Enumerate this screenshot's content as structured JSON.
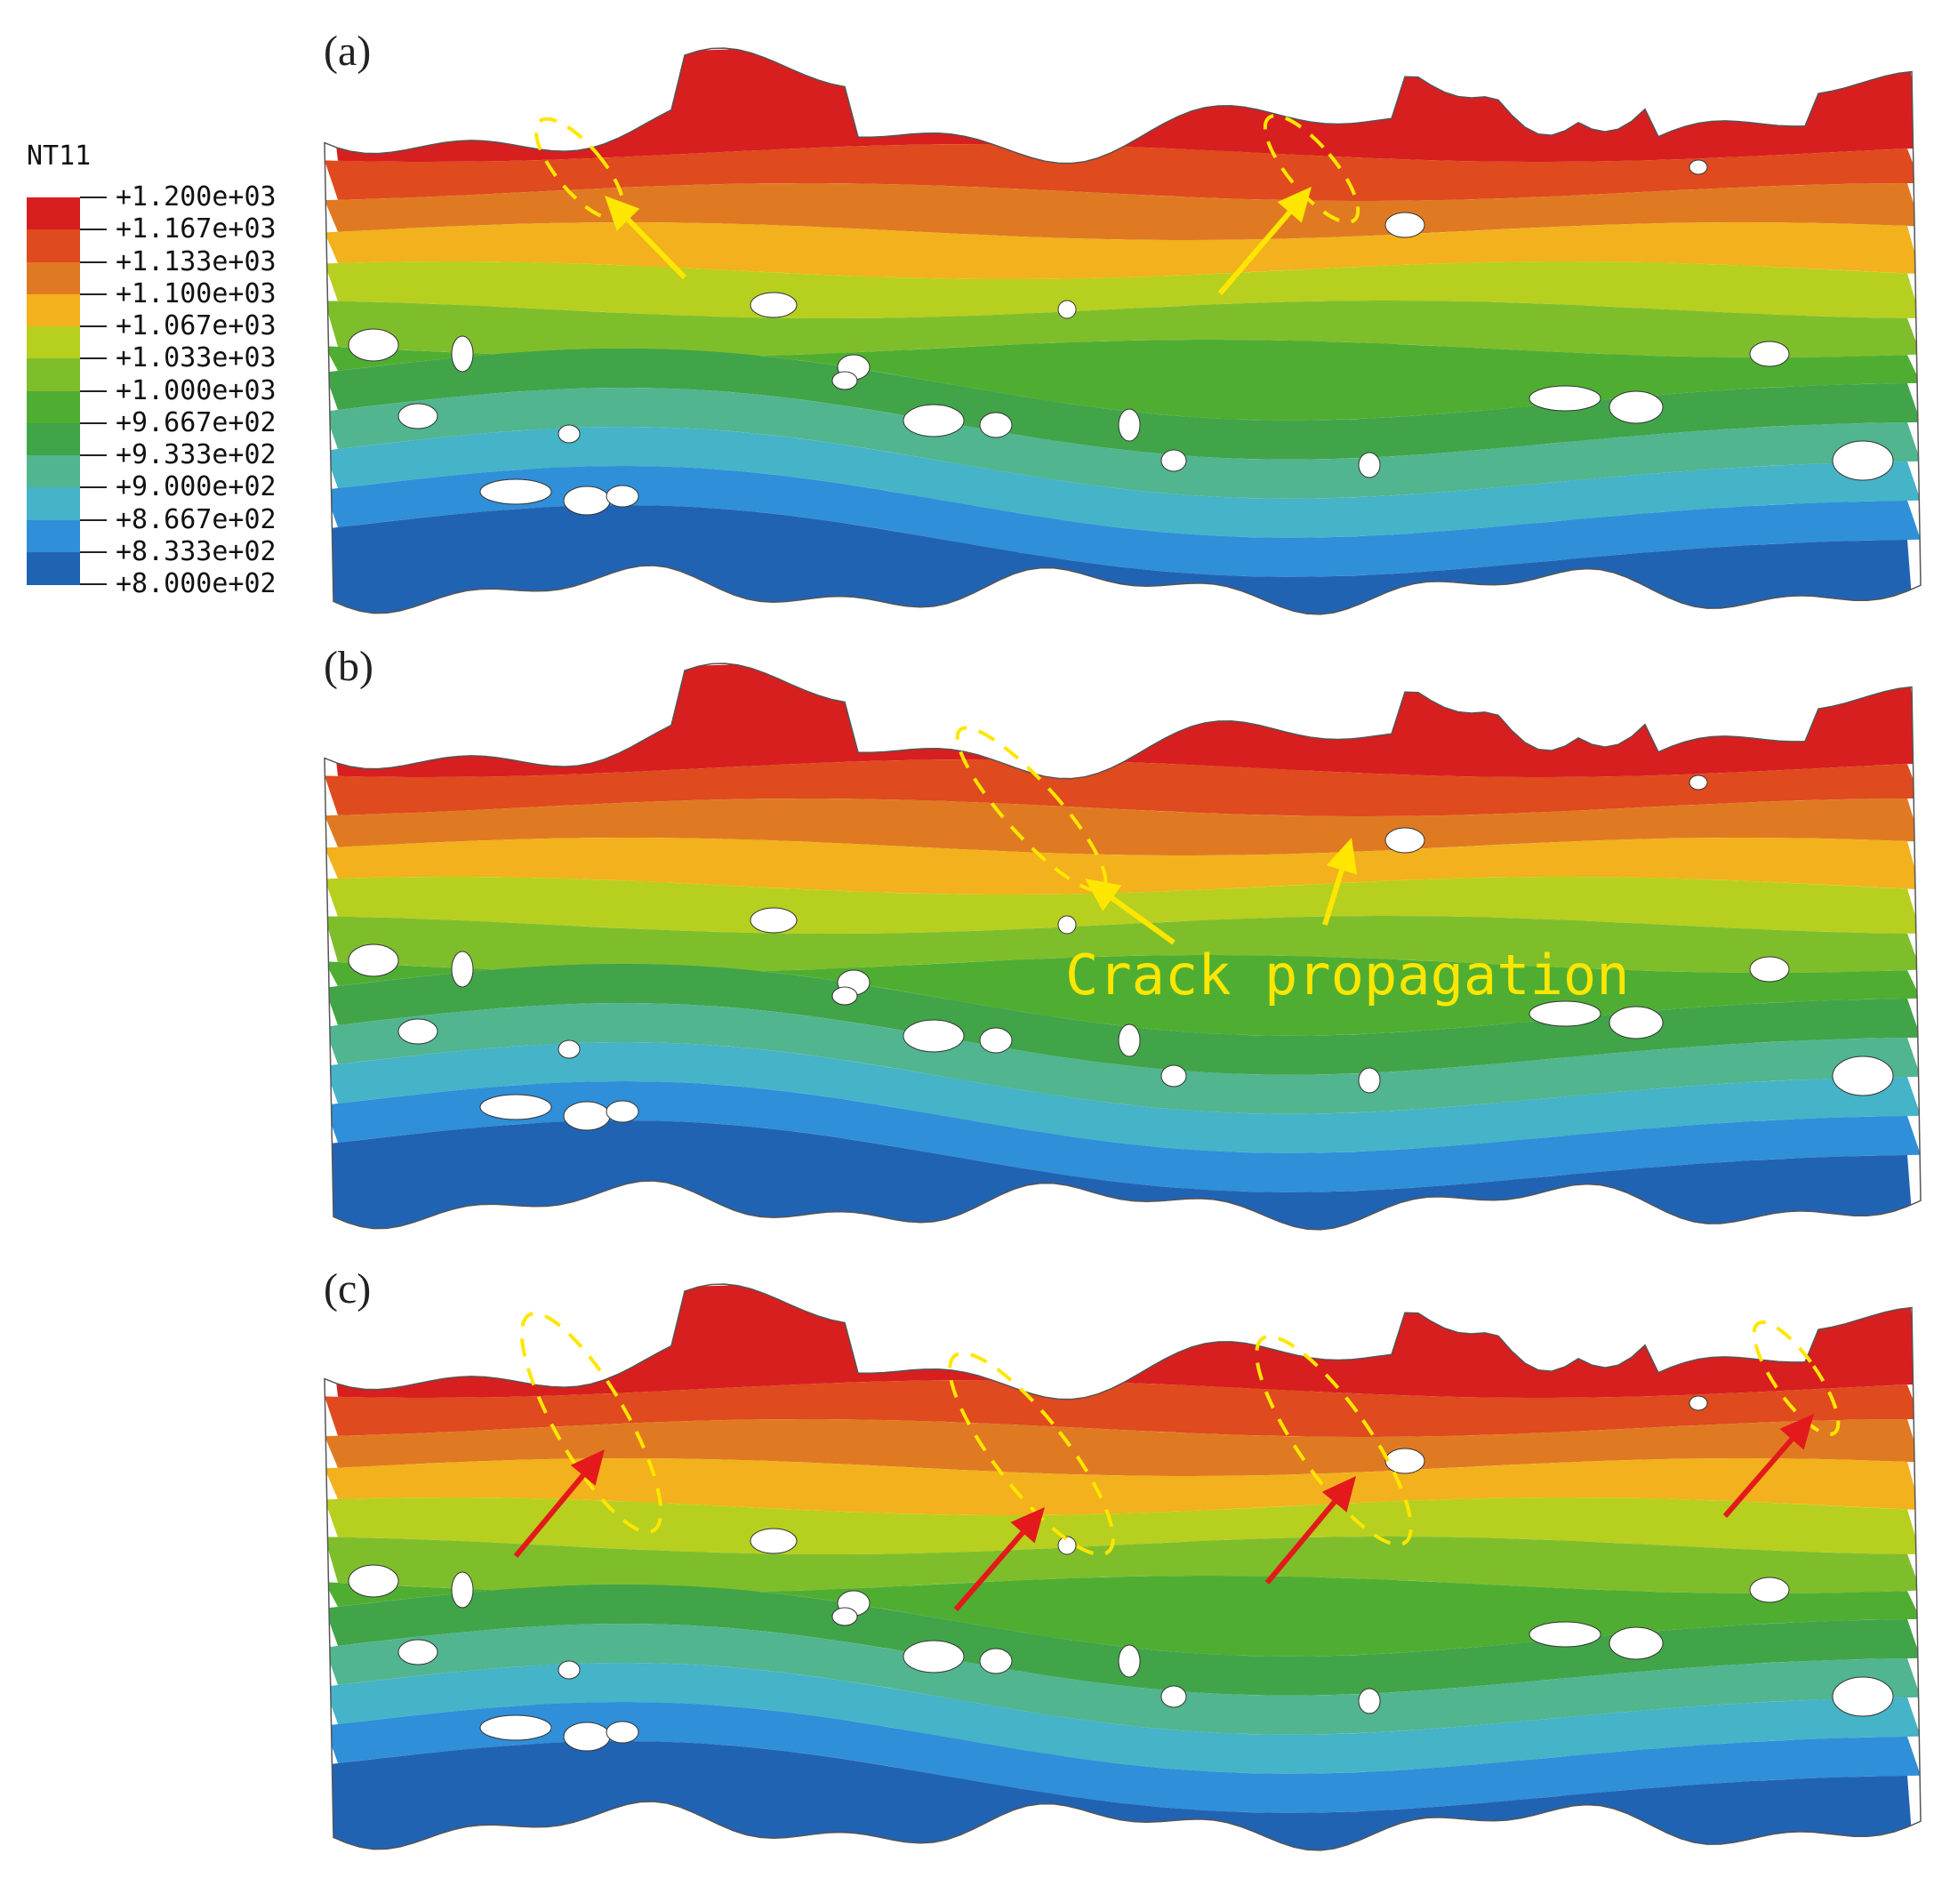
{
  "legend": {
    "title": "NT11",
    "entries": [
      {
        "label": "+1.200e+03",
        "color": "#d71f1f"
      },
      {
        "label": "+1.167e+03",
        "color": "#df4a1e"
      },
      {
        "label": "+1.133e+03",
        "color": "#e07a22"
      },
      {
        "label": "+1.100e+03",
        "color": "#f2b11d"
      },
      {
        "label": "+1.067e+03",
        "color": "#b7cf1f"
      },
      {
        "label": "+1.033e+03",
        "color": "#7fbe2b"
      },
      {
        "label": "+1.000e+03",
        "color": "#4fae31"
      },
      {
        "label": "+9.667e+02",
        "color": "#41a449"
      },
      {
        "label": "+9.333e+02",
        "color": "#51b58f"
      },
      {
        "label": "+9.000e+02",
        "color": "#45b3c8"
      },
      {
        "label": "+8.667e+02",
        "color": "#2f8fd8"
      },
      {
        "label": "+8.333e+02",
        "color": "#2163b3"
      },
      {
        "label": "+8.000e+02",
        "color": "#1b44a0"
      }
    ]
  },
  "panels": [
    {
      "label": "(a)"
    },
    {
      "label": "(b)"
    },
    {
      "label": "(c)"
    }
  ],
  "annotation": {
    "text": "Crack propagation",
    "color": "#ffe600"
  },
  "arrow_colors": {
    "highlight": "#ffe600",
    "marker": "#e3191b"
  }
}
